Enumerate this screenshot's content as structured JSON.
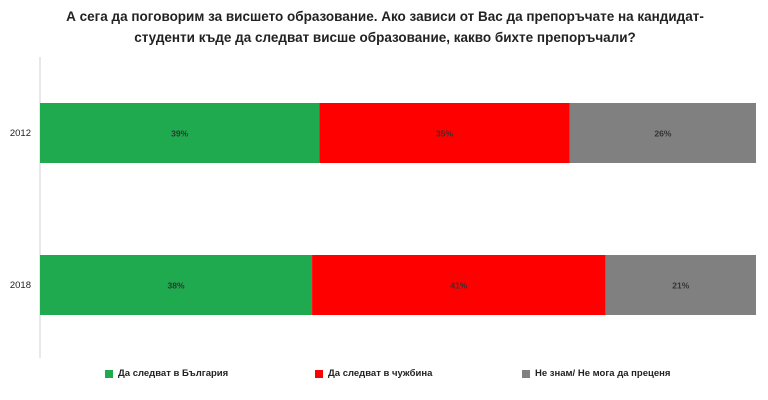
{
  "chart_data": {
    "type": "bar",
    "orientation": "horizontal",
    "stacked": "percent",
    "title_lines": [
      "А сега да поговорим за висшето образование. Ако зависи от Вас да препоръчате на кандидат-",
      "студенти къде да следват висше образование, какво бихте препоръчали?"
    ],
    "categories": [
      "2012",
      "2018"
    ],
    "series": [
      {
        "name": "Да следват в България",
        "color": "#1faa4f",
        "values": [
          39,
          38
        ],
        "labels": [
          "39%",
          "38%"
        ]
      },
      {
        "name": "Да следват в чужбина",
        "color": "#ff0000",
        "values": [
          35,
          41
        ],
        "labels": [
          "35%",
          "41%"
        ]
      },
      {
        "name": "Не знам/ Не мога да преценя",
        "color": "#808080",
        "values": [
          26,
          21
        ],
        "labels": [
          "26%",
          "21%"
        ]
      }
    ],
    "xlim": [
      0,
      100
    ],
    "grid": false,
    "legend_position": "bottom"
  }
}
